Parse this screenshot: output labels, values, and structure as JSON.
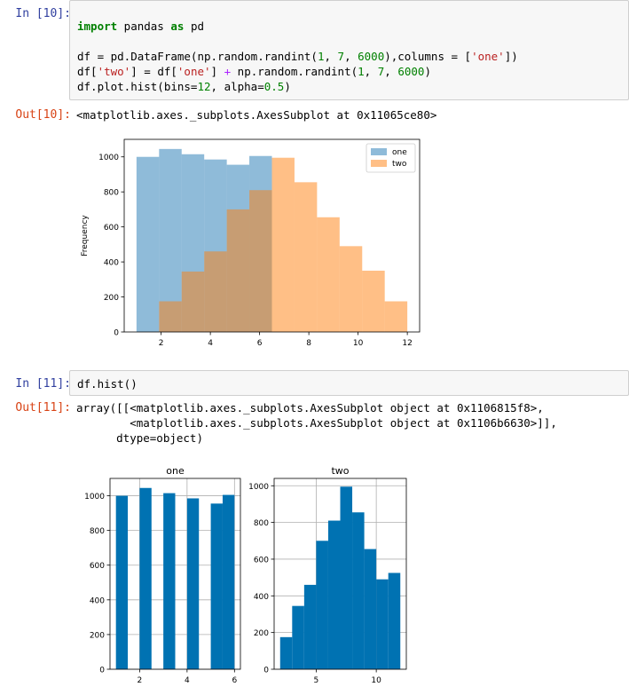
{
  "cell10": {
    "in_prompt": "In [10]:",
    "out_prompt": "Out[10]:",
    "code": [
      [
        {
          "t": "import",
          "c": "kw"
        },
        {
          "t": " pandas "
        },
        {
          "t": "as",
          "c": "kw"
        },
        {
          "t": " pd"
        }
      ],
      [],
      [
        {
          "t": "df = pd.DataFrame(np.random.randint("
        },
        {
          "t": "1",
          "c": "num"
        },
        {
          "t": ", "
        },
        {
          "t": "7",
          "c": "num"
        },
        {
          "t": ", "
        },
        {
          "t": "6000",
          "c": "num"
        },
        {
          "t": "),columns = ["
        },
        {
          "t": "'one'",
          "c": "str"
        },
        {
          "t": "])"
        }
      ],
      [
        {
          "t": "df["
        },
        {
          "t": "'two'",
          "c": "str"
        },
        {
          "t": "] = df["
        },
        {
          "t": "'one'",
          "c": "str"
        },
        {
          "t": "] "
        },
        {
          "t": "+",
          "c": "op"
        },
        {
          "t": " np.random.randint("
        },
        {
          "t": "1",
          "c": "num"
        },
        {
          "t": ", "
        },
        {
          "t": "7",
          "c": "num"
        },
        {
          "t": ", "
        },
        {
          "t": "6000",
          "c": "num"
        },
        {
          "t": ")"
        }
      ],
      [
        {
          "t": "df.plot.hist(bins="
        },
        {
          "t": "12",
          "c": "num"
        },
        {
          "t": ", alpha="
        },
        {
          "t": "0.5",
          "c": "num"
        },
        {
          "t": ")"
        }
      ]
    ],
    "output_text": "<matplotlib.axes._subplots.AxesSubplot at 0x11065ce80>"
  },
  "cell11": {
    "in_prompt": "In [11]:",
    "out_prompt": "Out[11]:",
    "code": [
      [
        {
          "t": "df.hist()"
        }
      ]
    ],
    "output_text": "array([[<matplotlib.axes._subplots.AxesSubplot object at 0x1106815f8>,\n        <matplotlib.axes._subplots.AxesSubplot object at 0x1106b6630>]],\n      dtype=object)"
  },
  "colors": {
    "series_one": "#1f77b4",
    "series_two": "#ff7f0e",
    "hist_bar": "#0072b2",
    "in_prompt": "#303f9f",
    "out_prompt": "#d84315"
  },
  "chart_data": [
    {
      "type": "bar",
      "histogram": true,
      "ylabel": "Frequency",
      "xlim": [
        0.5,
        12.5
      ],
      "ylim": [
        0,
        1100
      ],
      "xticks": [
        2,
        4,
        6,
        8,
        10,
        12
      ],
      "yticks": [
        0,
        200,
        400,
        600,
        800,
        1000
      ],
      "alpha": 0.5,
      "grid": false,
      "legend_position": "top-right",
      "series": [
        {
          "name": "one",
          "edges": [
            1.0,
            1.917,
            2.833,
            3.75,
            4.667,
            5.583,
            6.5
          ],
          "values": [
            1000,
            1045,
            1015,
            985,
            955,
            1005
          ]
        },
        {
          "name": "two",
          "edges": [
            1.917,
            2.833,
            3.75,
            4.667,
            5.583,
            6.5,
            7.417,
            8.333,
            9.25,
            10.167,
            11.083,
            12.0
          ],
          "values": [
            175,
            345,
            460,
            700,
            810,
            995,
            855,
            655,
            490,
            350,
            175
          ]
        }
      ]
    },
    {
      "type": "bar",
      "histogram": true,
      "title": "one",
      "xlim": [
        0.75,
        6.25
      ],
      "ylim": [
        0,
        1100
      ],
      "xticks": [
        2,
        4,
        6
      ],
      "yticks": [
        0,
        200,
        400,
        600,
        800,
        1000
      ],
      "grid": true,
      "edges": [
        1.0,
        1.5,
        2.0,
        2.5,
        3.0,
        3.5,
        4.0,
        4.5,
        5.0,
        5.5,
        6.0
      ],
      "values": [
        1000,
        0,
        1045,
        0,
        1015,
        0,
        985,
        0,
        955,
        1005
      ]
    },
    {
      "type": "bar",
      "histogram": true,
      "title": "two",
      "xlim": [
        1.5,
        12.5
      ],
      "ylim": [
        0,
        1040
      ],
      "xticks": [
        5,
        10
      ],
      "yticks": [
        0,
        200,
        400,
        600,
        800,
        1000
      ],
      "grid": true,
      "edges": [
        2.0,
        3.0,
        4.0,
        5.0,
        6.0,
        7.0,
        8.0,
        9.0,
        10.0,
        11.0,
        12.0
      ],
      "values": [
        175,
        345,
        460,
        700,
        810,
        995,
        855,
        655,
        490,
        525
      ]
    }
  ]
}
